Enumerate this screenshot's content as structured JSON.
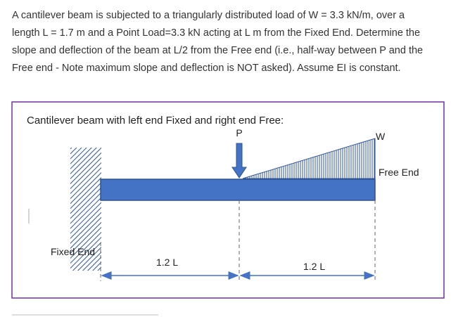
{
  "question": {
    "lines": [
      "A cantilever beam is subjected to a triangularly distributed load of W = 3.3 kN/m,  over a",
      "length L = 1.7 m and a Point Load=3.3 kN acting at L m from the Fixed End. Determine the",
      "slope and deflection of the beam at L/2 from the Free end (i.e., half-way between P and the",
      "Free end - Note maximum slope and deflection is NOT asked). Assume EI is constant."
    ]
  },
  "figure": {
    "caption": "Cantilever beam with left end Fixed and right end Free:",
    "point_load": "P",
    "distributed_load": "W",
    "free_end": "Free End",
    "fixed_end": "Fixed End",
    "span_left": "1.2 L",
    "span_right": "1.2 L"
  }
}
